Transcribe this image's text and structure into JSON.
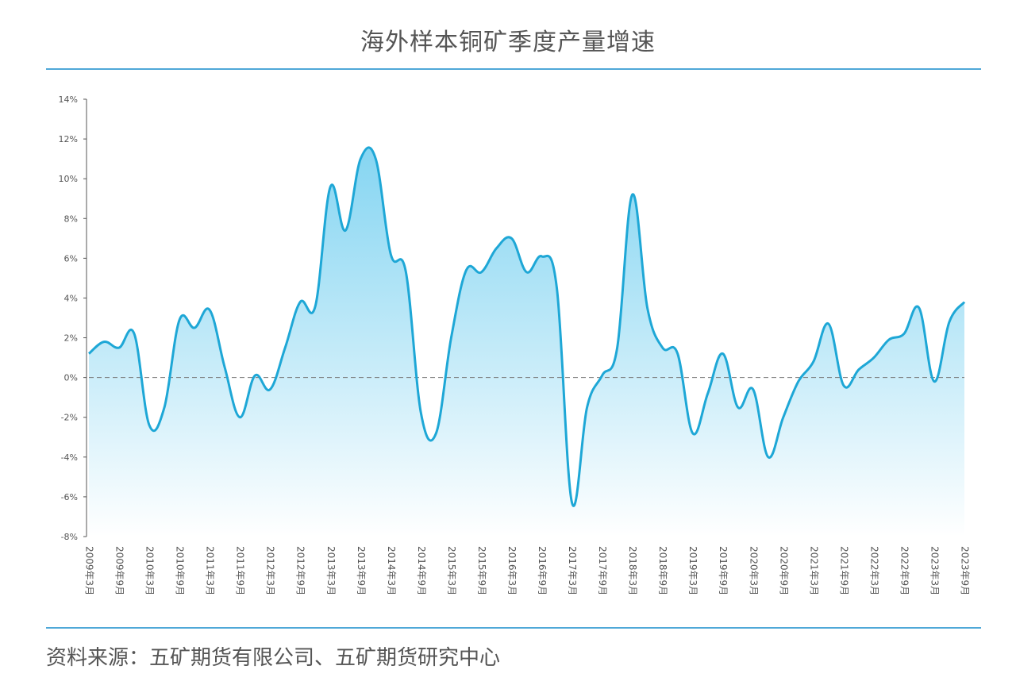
{
  "title": "海外样本铜矿季度产量增速",
  "source": "资料来源：五矿期货有限公司、五矿期货研究中心",
  "colors": {
    "line": "#1ea7d6",
    "fill_top": "#7fd3f1",
    "fill_bottom": "#ffffff",
    "zero_line": "#777777",
    "rule": "#4fa8d8"
  },
  "chart_data": {
    "type": "area",
    "title": "海外样本铜矿季度产量增速",
    "xlabel": "",
    "ylabel": "",
    "ylim": [
      -8,
      14
    ],
    "y_ticks": [
      -8,
      -6,
      -4,
      -2,
      0,
      2,
      4,
      6,
      8,
      10,
      12,
      14
    ],
    "y_tick_labels": [
      "-8%",
      "-6%",
      "-4%",
      "-2%",
      "0%",
      "2%",
      "4%",
      "6%",
      "8%",
      "10%",
      "12%",
      "14%"
    ],
    "x_tick_labels": [
      "2009年3月",
      "2009年9月",
      "2010年3月",
      "2010年9月",
      "2011年3月",
      "2011年9月",
      "2012年3月",
      "2012年9月",
      "2013年3月",
      "2013年9月",
      "2014年3月",
      "2014年9月",
      "2015年3月",
      "2015年9月",
      "2016年3月",
      "2016年9月",
      "2017年3月",
      "2017年9月",
      "2018年3月",
      "2018年9月",
      "2019年3月",
      "2019年9月",
      "2020年3月",
      "2020年9月",
      "2021年3月",
      "2021年9月",
      "2022年3月",
      "2022年9月",
      "2023年3月",
      "2023年9月"
    ],
    "grid": false,
    "reference_line": 0,
    "series": [
      {
        "values": [
          1.2,
          1.8,
          1.5,
          2.2,
          -2.4,
          -1.5,
          2.9,
          2.5,
          3.4,
          0.5,
          -2.0,
          0.1,
          -0.6,
          1.5,
          3.8,
          3.6,
          9.6,
          7.4,
          11.0,
          11.0,
          6.2,
          5.3,
          -1.8,
          -2.8,
          2.0,
          5.4,
          5.3,
          6.5,
          7.0,
          5.3,
          6.1,
          4.5,
          -6.3,
          -1.5,
          0.1,
          1.5,
          9.2,
          3.5,
          1.5,
          1.2,
          -2.8,
          -0.8,
          1.2,
          -1.5,
          -0.6,
          -4.0,
          -2.0,
          -0.2,
          0.8,
          2.7,
          -0.4,
          0.4,
          1.0,
          1.9,
          2.2,
          3.5,
          -0.2,
          2.8,
          3.8
        ]
      }
    ]
  }
}
